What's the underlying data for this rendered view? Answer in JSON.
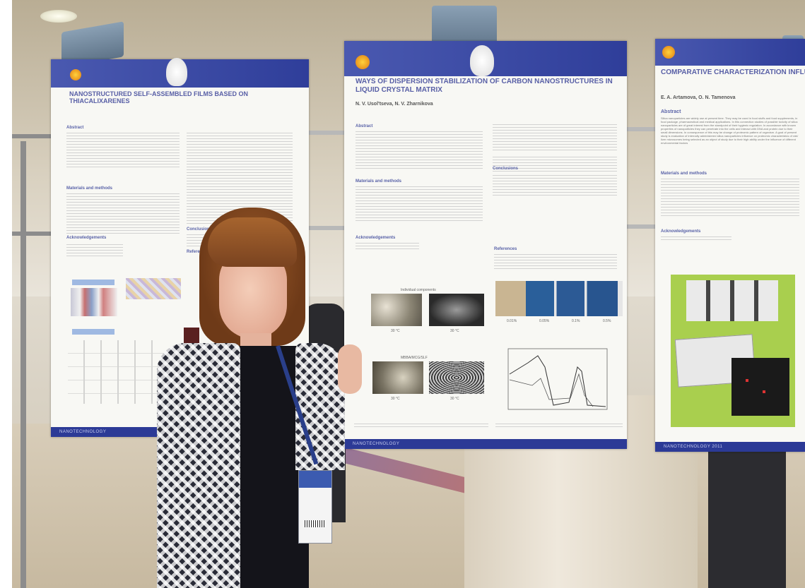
{
  "posters": {
    "left": {
      "title": "NANOSTRUCTURED SELF-ASSEMBLED FILMS BASED ON THIACALIXARENES",
      "sec_abstract": "Abstract",
      "sec_methods": "Materials and methods",
      "sec_ack": "Acknowledgements",
      "sec_conclusions": "Conclusions",
      "sec_refs": "References",
      "footer": "NANOTECHNOLOGY"
    },
    "center": {
      "title": "WAYS OF DISPERSION STABILIZATION OF CARBON NANOSTRUCTURES IN LIQUID CRYSTAL MATRIX",
      "authors": "N. V. Usol'tseva, N. V. Zharnikova",
      "sec_abstract": "Abstract",
      "sec_methods": "Materials and methods",
      "sec_conclusions": "Conclusions",
      "sec_ack": "Acknowledgements",
      "sec_refs": "References",
      "cap_top": "Individual components",
      "cap_bottom": "MBBA/MCG/SLF",
      "cap_a1": "30 °C",
      "cap_a2": "30 °C",
      "cap_b1": "30 °C",
      "cap_b2": "30 °C",
      "jar1": "0.01%",
      "jar2": "0.05%",
      "jar3": "0.1%",
      "jar4": "0.5%",
      "footer": "NANOTECHNOLOGY"
    },
    "right": {
      "title": "COMPARATIVE CHARACTERIZATION INFLUENCE ON LIVER MICROSOMES",
      "authors": "E. A. Artamova, O. N. Tamenova",
      "sec_abstract": "Abstract",
      "abstract_text": "Silica nanoparticles are widely use at present time. They may be used in food stuffs and food supplements, in food package, pharmaceutical and medical applications. In this connection studies of possible toxicity of silica nanoparticles are of great interest from the standpoint of their hygienic regulation. In accordance with known properties of nanoparticles they can penetrate into the cells and interact with DNA and protein due to their small dimensions. In consequence of this may be change of proteomic pattern of organism. A goal of present study is evaluation of internally administered silica nanoparticles influence on proteomic characteristics of rats' liver microsomes being selected as an object of study due to their high ability under the influence of different environmental factors",
      "sec_methods": "Materials and methods",
      "sec_ack": "Acknowledgements",
      "footer": "NANOTECHNOLOGY 2011"
    }
  },
  "colors": {
    "poster_header": "#3a48a4",
    "poster_title": "#585fa6",
    "poster_bg": "#f8f8f4",
    "right_figure_bg": "#a9cf4e"
  }
}
